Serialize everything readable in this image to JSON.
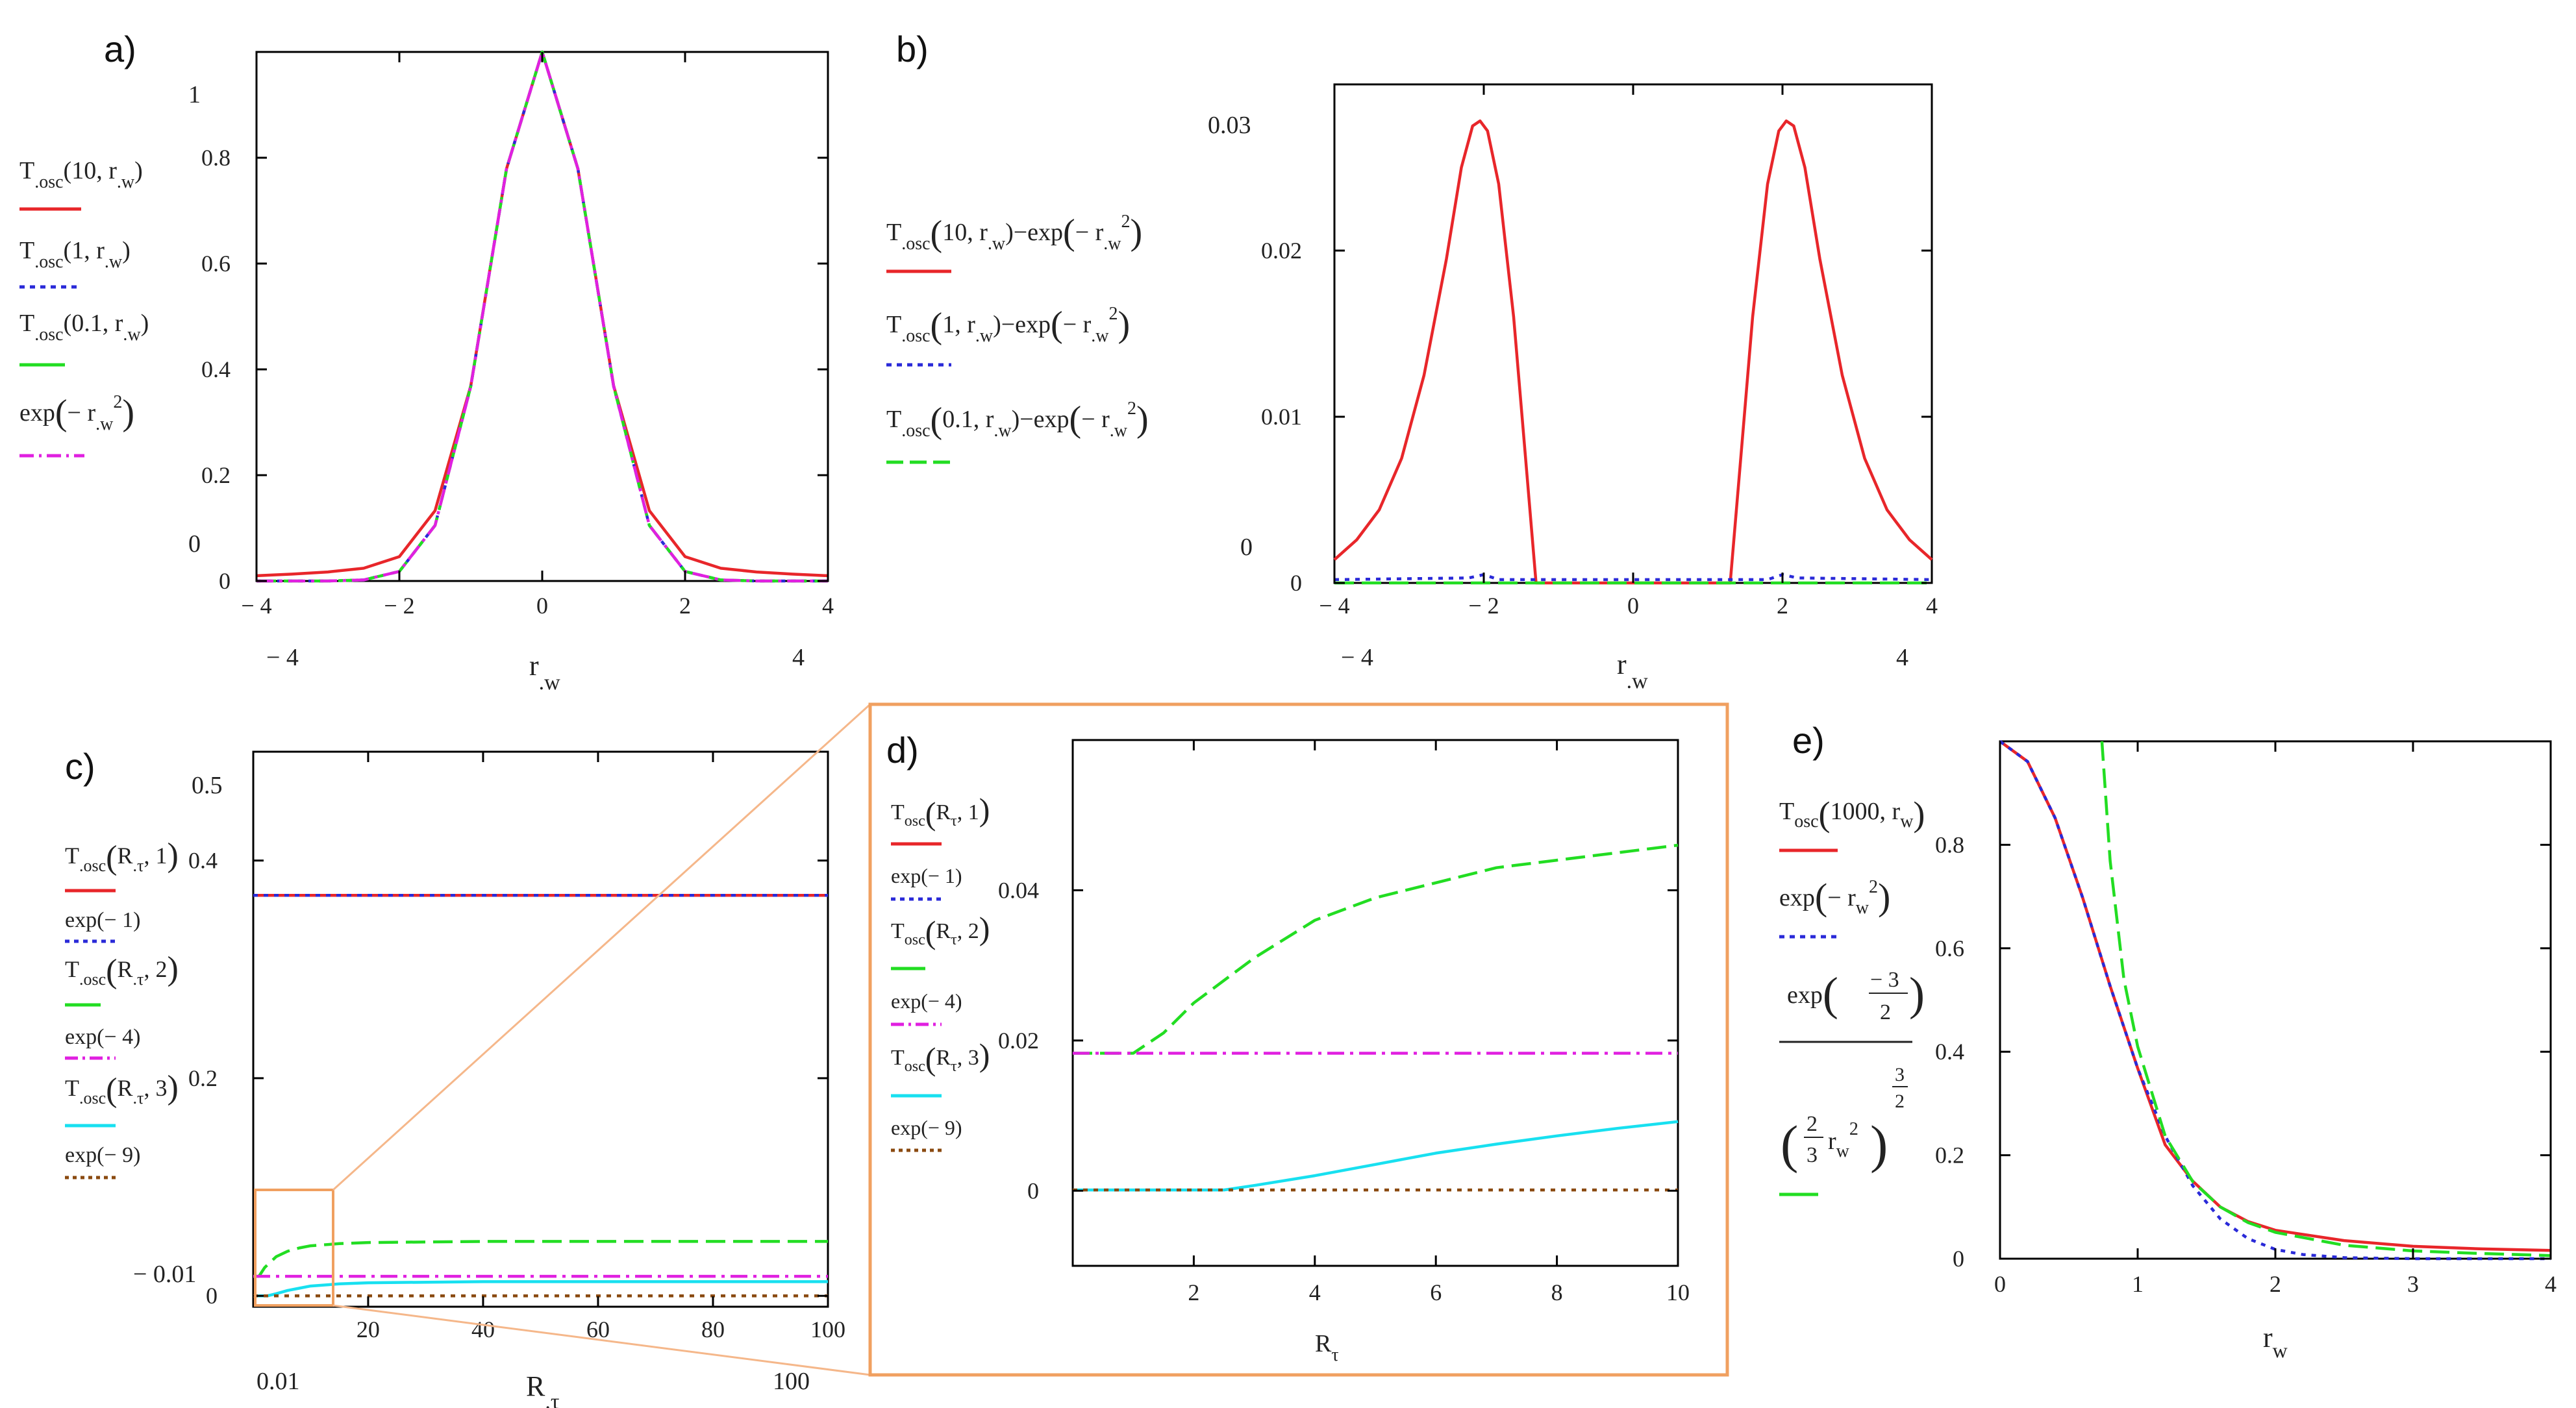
{
  "chart_data": [
    {
      "id": "a",
      "panel_label": "a)",
      "type": "line",
      "xlabel_parts": [
        "r",
        ".w"
      ],
      "xlim": [
        -4,
        4
      ],
      "ylim": [
        0,
        1
      ],
      "xticks": [
        "− 4",
        "− 2",
        "0",
        "2",
        "4"
      ],
      "yticks": [
        "0",
        "0.2",
        "0.4",
        "0.6",
        "0.8"
      ],
      "axis_min_labels": [
        "− 4",
        "0"
      ],
      "axis_max_labels": [
        "4",
        "1"
      ],
      "legend": [
        {
          "text": "T.osc(10, r.w)",
          "color": "#e8262a",
          "dash": "solid"
        },
        {
          "text": "T.osc(1, r.w)",
          "color": "#2a2ad8",
          "dash": "dotted"
        },
        {
          "text": "T.osc(0.1, r.w)",
          "color": "#22dd22",
          "dash": "dashed"
        },
        {
          "text": "exp(− r.w²)",
          "color": "#e020e0",
          "dash": "dashdot"
        }
      ],
      "series": [
        {
          "name": "T.osc(10, r.w)",
          "color": "#e8262a",
          "dash": "solid",
          "x": [
            -4,
            -3.5,
            -3,
            -2.5,
            -2,
            -1.5,
            -1,
            -0.5,
            0,
            0.5,
            1,
            1.5,
            2,
            2.5,
            3,
            3.5,
            4
          ],
          "y": [
            0.01,
            0.013,
            0.017,
            0.024,
            0.046,
            0.133,
            0.369,
            0.779,
            1,
            0.779,
            0.369,
            0.133,
            0.046,
            0.024,
            0.017,
            0.013,
            0.01
          ]
        },
        {
          "name": "T.osc(1, r.w)",
          "color": "#2a2ad8",
          "dash": "dotted",
          "x": [
            -4,
            -3.5,
            -3,
            -2.5,
            -2,
            -1.5,
            -1,
            -0.5,
            0,
            0.5,
            1,
            1.5,
            2,
            2.5,
            3,
            3.5,
            4
          ],
          "y": [
            0,
            0,
            0,
            0.002,
            0.018,
            0.105,
            0.368,
            0.779,
            1,
            0.779,
            0.368,
            0.105,
            0.018,
            0.002,
            0,
            0,
            0
          ]
        },
        {
          "name": "T.osc(0.1, r.w)",
          "color": "#22dd22",
          "dash": "dashed",
          "x": [
            -4,
            -3.5,
            -3,
            -2.5,
            -2,
            -1.5,
            -1,
            -0.5,
            0,
            0.5,
            1,
            1.5,
            2,
            2.5,
            3,
            3.5,
            4
          ],
          "y": [
            0,
            0,
            0,
            0.002,
            0.018,
            0.105,
            0.368,
            0.779,
            1,
            0.779,
            0.368,
            0.105,
            0.018,
            0.002,
            0,
            0,
            0
          ]
        },
        {
          "name": "exp(− r.w²)",
          "color": "#e020e0",
          "dash": "dashdot",
          "x": [
            -4,
            -3.5,
            -3,
            -2.5,
            -2,
            -1.5,
            -1,
            -0.5,
            0,
            0.5,
            1,
            1.5,
            2,
            2.5,
            3,
            3.5,
            4
          ],
          "y": [
            0,
            0,
            0,
            0.002,
            0.018,
            0.105,
            0.368,
            0.779,
            1,
            0.779,
            0.368,
            0.105,
            0.018,
            0.002,
            0,
            0,
            0
          ]
        }
      ]
    },
    {
      "id": "b",
      "panel_label": "b)",
      "type": "line",
      "xlabel_parts": [
        "r",
        ".w"
      ],
      "xlim": [
        -4,
        4
      ],
      "ylim": [
        0,
        0.03
      ],
      "xticks": [
        "− 4",
        "− 2",
        "0",
        "2",
        "4"
      ],
      "yticks": [
        "0",
        "0.01",
        "0.02"
      ],
      "axis_min_labels": [
        "− 4",
        "0"
      ],
      "axis_max_labels": [
        "4",
        "0.03"
      ],
      "legend": [
        {
          "text": "T.osc(10, r.w) − exp(− r.w²)",
          "color": "#e8262a",
          "dash": "solid"
        },
        {
          "text": "T.osc(1, r.w) − exp(− r.w²)",
          "color": "#2a2ad8",
          "dash": "dotted"
        },
        {
          "text": "T.osc(0.1, r.w) − exp(− r.w²)",
          "color": "#22dd22",
          "dash": "dashed"
        }
      ],
      "series": [
        {
          "name": "T.osc(10, r.w) − exp(− r.w²)",
          "color": "#e8262a",
          "dash": "solid",
          "x": [
            -4,
            -3.7,
            -3.4,
            -3.1,
            -2.8,
            -2.5,
            -2.3,
            -2.15,
            -2.05,
            -1.95,
            -1.8,
            -1.6,
            -1.45,
            -1.3,
            1.3,
            1.45,
            1.6,
            1.8,
            1.95,
            2.05,
            2.15,
            2.3,
            2.5,
            2.8,
            3.1,
            3.4,
            3.7,
            4
          ],
          "y": [
            0.0014,
            0.0026,
            0.0044,
            0.0075,
            0.0125,
            0.0195,
            0.025,
            0.0275,
            0.0278,
            0.0272,
            0.024,
            0.016,
            0.008,
            0,
            0,
            0.008,
            0.016,
            0.024,
            0.0272,
            0.0278,
            0.0275,
            0.025,
            0.0195,
            0.0125,
            0.0075,
            0.0044,
            0.0026,
            0.0014
          ]
        },
        {
          "name": "T.osc(1, r.w) − exp(− r.w²)",
          "color": "#2a2ad8",
          "dash": "dotted",
          "x": [
            -4,
            -2.2,
            -2,
            -1.8,
            1.8,
            2,
            2.2,
            4
          ],
          "y": [
            0.0002,
            0.0003,
            0.0005,
            0.0002,
            0.0002,
            0.0005,
            0.0003,
            0.0002
          ]
        },
        {
          "name": "T.osc(0.1, r.w) − exp(− r.w²)",
          "color": "#22dd22",
          "dash": "dashed",
          "x": [
            -4,
            4
          ],
          "y": [
            0,
            0
          ]
        }
      ]
    },
    {
      "id": "c",
      "panel_label": "c)",
      "type": "line",
      "xlabel_parts": [
        "R",
        ".τ"
      ],
      "xlim": [
        0.01,
        100
      ],
      "ylim": [
        -0.01,
        0.5
      ],
      "xticks": [
        "20",
        "40",
        "60",
        "80",
        "100"
      ],
      "yticks": [
        "0",
        "0.2",
        "0.4"
      ],
      "axis_min_labels": [
        "0.01",
        "− 0.01"
      ],
      "axis_max_labels": [
        "100",
        "0.5"
      ],
      "legend": [
        {
          "text": "T.osc(R.τ, 1)",
          "color": "#e8262a",
          "dash": "solid"
        },
        {
          "text": "exp(− 1)",
          "color": "#2a2ad8",
          "dash": "dotted"
        },
        {
          "text": "T.osc(R.τ, 2)",
          "color": "#22dd22",
          "dash": "dashed"
        },
        {
          "text": "exp(− 4)",
          "color": "#e020e0",
          "dash": "dashdot"
        },
        {
          "text": "T.osc(R.τ, 3)",
          "color": "#18e0f0",
          "dash": "solid"
        },
        {
          "text": "exp(− 9)",
          "color": "#8a4a10",
          "dash": "dotted"
        }
      ],
      "series": [
        {
          "name": "T.osc(R.τ, 1)",
          "color": "#e8262a",
          "dash": "solid",
          "x": [
            0.01,
            100
          ],
          "y": [
            0.368,
            0.368
          ]
        },
        {
          "name": "exp(− 1)",
          "color": "#2a2ad8",
          "dash": "dotted",
          "x": [
            0.01,
            100
          ],
          "y": [
            0.368,
            0.368
          ]
        },
        {
          "name": "T.osc(R.τ, 2)",
          "color": "#22dd22",
          "dash": "dashed",
          "x": [
            0.01,
            1,
            2,
            4,
            6,
            8,
            10,
            15,
            20,
            40,
            60,
            80,
            100
          ],
          "y": [
            0.018,
            0.018,
            0.026,
            0.036,
            0.041,
            0.044,
            0.046,
            0.048,
            0.049,
            0.05,
            0.05,
            0.05,
            0.05
          ]
        },
        {
          "name": "exp(− 4)",
          "color": "#e020e0",
          "dash": "dashdot",
          "x": [
            0.01,
            100
          ],
          "y": [
            0.018,
            0.018
          ]
        },
        {
          "name": "T.osc(R.τ, 3)",
          "color": "#18e0f0",
          "dash": "solid",
          "x": [
            0.01,
            2.5,
            4,
            6,
            8,
            10,
            15,
            20,
            40,
            60,
            80,
            100
          ],
          "y": [
            0,
            0,
            0.002,
            0.005,
            0.007,
            0.009,
            0.011,
            0.012,
            0.013,
            0.013,
            0.013,
            0.013
          ]
        },
        {
          "name": "exp(− 9)",
          "color": "#8a4a10",
          "dash": "dotted",
          "x": [
            0.01,
            100
          ],
          "y": [
            0,
            0
          ]
        }
      ]
    },
    {
      "id": "d",
      "panel_label": "d)",
      "type": "line",
      "xlabel_parts": [
        "R",
        "τ"
      ],
      "xlim": [
        0,
        10
      ],
      "ylim": [
        -0.01,
        0.06
      ],
      "xticks": [
        "2",
        "4",
        "6",
        "8",
        "10"
      ],
      "yticks": [
        "0",
        "0.02",
        "0.04"
      ],
      "legend": [
        {
          "text": "Tosc(Rτ, 1)",
          "color": "#e8262a",
          "dash": "solid"
        },
        {
          "text": "exp(− 1)",
          "color": "#2a2ad8",
          "dash": "dotted"
        },
        {
          "text": "Tosc(Rτ, 2)",
          "color": "#22dd22",
          "dash": "dashed"
        },
        {
          "text": "exp(− 4)",
          "color": "#e020e0",
          "dash": "dashdot"
        },
        {
          "text": "Tosc(Rτ, 3)",
          "color": "#18e0f0",
          "dash": "solid"
        },
        {
          "text": "exp(− 9)",
          "color": "#8a4a10",
          "dash": "dotted"
        }
      ],
      "series": [
        {
          "name": "Tosc(Rτ, 2)",
          "color": "#22dd22",
          "dash": "dashed",
          "x": [
            0,
            1,
            1.5,
            2,
            3,
            4,
            5,
            6,
            7,
            8,
            9,
            10
          ],
          "y": [
            0.0183,
            0.0183,
            0.021,
            0.025,
            0.031,
            0.036,
            0.039,
            0.041,
            0.043,
            0.044,
            0.045,
            0.046
          ]
        },
        {
          "name": "exp(− 4)",
          "color": "#e020e0",
          "dash": "dashdot",
          "x": [
            0,
            10
          ],
          "y": [
            0.0183,
            0.0183
          ]
        },
        {
          "name": "Tosc(Rτ, 3)",
          "color": "#18e0f0",
          "dash": "solid",
          "x": [
            0,
            2.5,
            3,
            4,
            5,
            6,
            7,
            8,
            9,
            10
          ],
          "y": [
            0.0001,
            0.0001,
            0.0007,
            0.002,
            0.0035,
            0.005,
            0.0062,
            0.0073,
            0.0083,
            0.0092
          ]
        },
        {
          "name": "exp(− 9)",
          "color": "#8a4a10",
          "dash": "dotted",
          "x": [
            0,
            10
          ],
          "y": [
            0.0001,
            0.0001
          ]
        }
      ]
    },
    {
      "id": "e",
      "panel_label": "e)",
      "type": "line",
      "xlabel_parts": [
        "r",
        "w"
      ],
      "xlim": [
        0,
        4
      ],
      "ylim": [
        0,
        1
      ],
      "xticks": [
        "0",
        "1",
        "2",
        "3",
        "4"
      ],
      "yticks": [
        "0",
        "0.2",
        "0.4",
        "0.6",
        "0.8"
      ],
      "legend": [
        {
          "text": "Tosc(1000, rw)",
          "color": "#e8262a",
          "dash": "solid"
        },
        {
          "text": "exp(− rw²)",
          "color": "#2a2ad8",
          "dash": "dotted"
        },
        {
          "text": "exp(−3/2) / ((2/3) rw²)^(3/2)",
          "color": "#22dd22",
          "dash": "dashed"
        }
      ],
      "series": [
        {
          "name": "Tosc(1000, rw)",
          "color": "#e8262a",
          "dash": "solid",
          "x": [
            0,
            0.2,
            0.4,
            0.6,
            0.8,
            1,
            1.2,
            1.4,
            1.6,
            1.8,
            2,
            2.5,
            3,
            3.5,
            4
          ],
          "y": [
            1,
            0.961,
            0.852,
            0.698,
            0.527,
            0.368,
            0.22,
            0.15,
            0.1,
            0.072,
            0.055,
            0.035,
            0.024,
            0.019,
            0.016
          ]
        },
        {
          "name": "exp(− rw²)",
          "color": "#2a2ad8",
          "dash": "dotted",
          "x": [
            0,
            0.2,
            0.4,
            0.6,
            0.8,
            1,
            1.2,
            1.4,
            1.6,
            1.8,
            2,
            2.2,
            2.5,
            3,
            4
          ],
          "y": [
            1,
            0.961,
            0.852,
            0.698,
            0.527,
            0.368,
            0.237,
            0.141,
            0.077,
            0.039,
            0.018,
            0.008,
            0.002,
            0,
            0
          ]
        },
        {
          "name": "exp(−3/2) / ((2/3) rw²)^(3/2)",
          "color": "#22dd22",
          "dash": "dashed",
          "x": [
            0.74,
            0.8,
            0.9,
            1,
            1.2,
            1.4,
            1.6,
            1.8,
            2,
            2.5,
            3,
            3.5,
            4
          ],
          "y": [
            1,
            0.769,
            0.54,
            0.41,
            0.237,
            0.149,
            0.1,
            0.07,
            0.051,
            0.026,
            0.015,
            0.01,
            0.006
          ]
        }
      ]
    }
  ]
}
